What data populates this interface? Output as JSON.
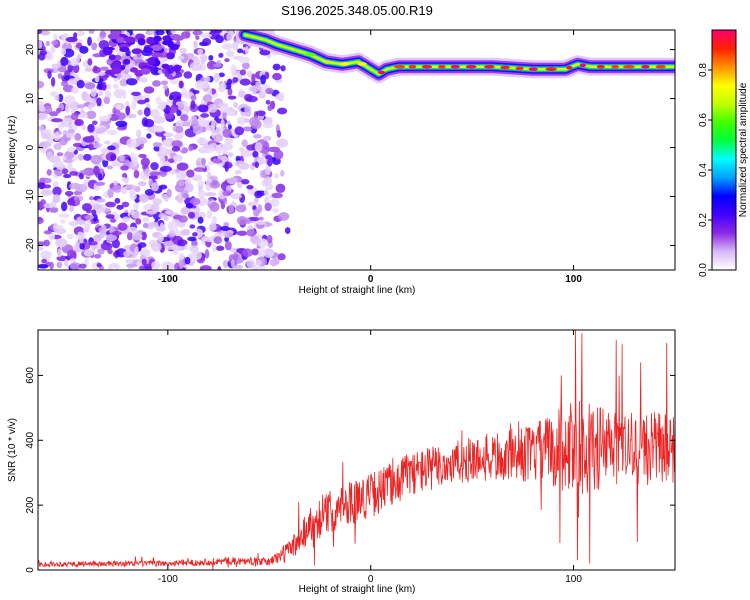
{
  "title": "S196.2025.348.05.00.R19",
  "chart_data": [
    {
      "type": "heatmap",
      "title": "S196.2025.348.05.00.R19",
      "xlabel": "Height of straight line (km)",
      "ylabel": "Frequency (Hz)",
      "xlim": [
        -164,
        150
      ],
      "ylim": [
        -25,
        24
      ],
      "x_ticks": [
        "-100",
        "0",
        "100"
      ],
      "y_ticks": [
        "20",
        "10",
        "0",
        "-10",
        "-20"
      ],
      "colorbar": {
        "label": "Normalized spectral amplitude",
        "range": [
          0,
          0.96
        ],
        "ticks": [
          "0.0",
          "0.2",
          "0.4",
          "0.6",
          "0.8"
        ],
        "colors": [
          "#ffffff",
          "#d8b8f6",
          "#8a2be2",
          "#4400ff",
          "#0000ff",
          "#00a0ff",
          "#00ffff",
          "#00ff40",
          "#40ff00",
          "#c0ff00",
          "#ffff00",
          "#ff9000",
          "#ff2000",
          "#ff0070"
        ]
      },
      "ridge": [
        {
          "x": -62,
          "y": 23
        },
        {
          "x": -52,
          "y": 22
        },
        {
          "x": -46,
          "y": 21
        },
        {
          "x": -38,
          "y": 20
        },
        {
          "x": -30,
          "y": 19
        },
        {
          "x": -22,
          "y": 17.5
        },
        {
          "x": -14,
          "y": 17
        },
        {
          "x": -6,
          "y": 17.5
        },
        {
          "x": 0,
          "y": 16
        },
        {
          "x": 4,
          "y": 15
        },
        {
          "x": 8,
          "y": 16
        },
        {
          "x": 14,
          "y": 16.5
        },
        {
          "x": 40,
          "y": 16.5
        },
        {
          "x": 60,
          "y": 16.5
        },
        {
          "x": 80,
          "y": 16
        },
        {
          "x": 96,
          "y": 16
        },
        {
          "x": 102,
          "y": 17
        },
        {
          "x": 108,
          "y": 16.5
        },
        {
          "x": 130,
          "y": 16.5
        },
        {
          "x": 150,
          "y": 16.5
        }
      ]
    },
    {
      "type": "line",
      "xlabel": "Height of straight line (km)",
      "ylabel": "SNR (10 * v/v)",
      "xlim": [
        -164,
        150
      ],
      "ylim": [
        0,
        740
      ],
      "x_ticks": [
        "-100",
        "0",
        "100"
      ],
      "y_ticks": [
        "0",
        "200",
        "400",
        "600"
      ],
      "series": [
        {
          "name": "SNR",
          "color": "#ee2222",
          "envelope": [
            {
              "x": -164,
              "mean": 18,
              "noise": 8
            },
            {
              "x": -100,
              "mean": 20,
              "noise": 9
            },
            {
              "x": -70,
              "mean": 28,
              "noise": 12
            },
            {
              "x": -50,
              "mean": 25,
              "noise": 12
            },
            {
              "x": -40,
              "mean": 60,
              "noise": 35
            },
            {
              "x": -30,
              "mean": 140,
              "noise": 60
            },
            {
              "x": -15,
              "mean": 200,
              "noise": 70
            },
            {
              "x": 0,
              "mean": 230,
              "noise": 70
            },
            {
              "x": 20,
              "mean": 300,
              "noise": 70
            },
            {
              "x": 50,
              "mean": 340,
              "noise": 70
            },
            {
              "x": 80,
              "mean": 360,
              "noise": 90
            },
            {
              "x": 100,
              "mean": 380,
              "noise": 150
            },
            {
              "x": 130,
              "mean": 370,
              "noise": 120
            },
            {
              "x": 150,
              "mean": 380,
              "noise": 110
            }
          ],
          "peaks": [
            {
              "x": 101,
              "y": 740
            },
            {
              "x": 104,
              "y": 730
            },
            {
              "x": 121,
              "y": 710
            },
            {
              "x": 133,
              "y": 640
            },
            {
              "x": 146,
              "y": 700
            },
            {
              "x": 94,
              "y": 600
            },
            {
              "x": 108,
              "y": 20
            },
            {
              "x": 102,
              "y": 30
            }
          ]
        }
      ]
    }
  ]
}
